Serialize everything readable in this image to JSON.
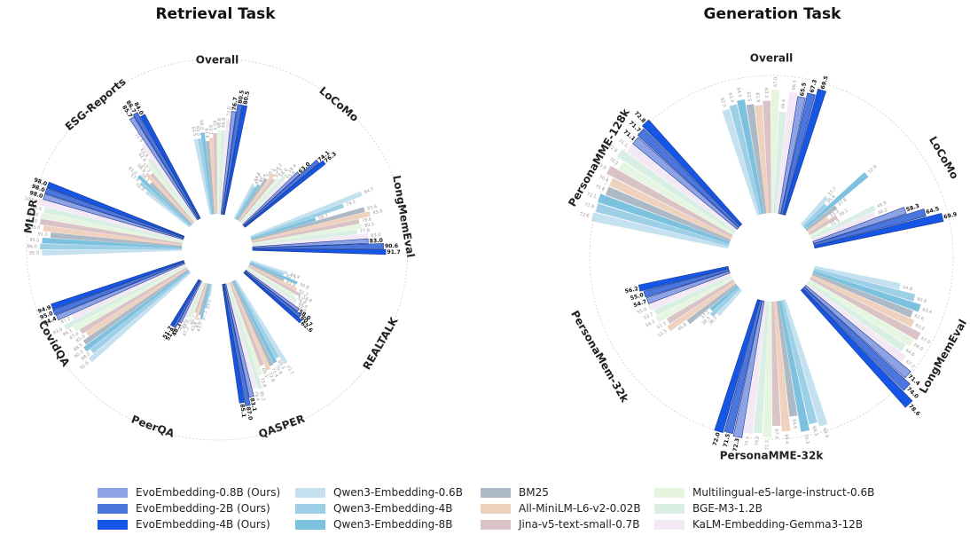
{
  "palette": {
    "EvoEmbedding-0.8B (Ours)": "#8ea2e6",
    "EvoEmbedding-2B (Ours)": "#4a76de",
    "EvoEmbedding-4B (Ours)": "#1656e6",
    "Qwen3-Embedding-0.6B": "#c5e0ef",
    "Qwen3-Embedding-4B": "#9dcfe6",
    "Qwen3-Embedding-8B": "#7cc1de",
    "BM25": "#aeb9c6",
    "All-MiniLM-L6-v2-0.02B": "#efd2bd",
    "Jina-v5-text-small-0.7B": "#d9c3c7",
    "Multilingual-e5-large-instruct-0.6B": "#e6f5e0",
    "BGE-M3-1.2B": "#d9efe4",
    "KaLM-Embedding-Gemma3-12B": "#f3e8f4"
  },
  "legend": [
    "EvoEmbedding-0.8B (Ours)",
    "EvoEmbedding-2B (Ours)",
    "EvoEmbedding-4B (Ours)",
    "Qwen3-Embedding-0.6B",
    "Qwen3-Embedding-4B",
    "Qwen3-Embedding-8B",
    "BM25",
    "All-MiniLM-L6-v2-0.02B",
    "Jina-v5-text-small-0.7B",
    "Multilingual-e5-large-instruct-0.6B",
    "BGE-M3-1.2B",
    "KaLM-Embedding-Gemma3-12B"
  ],
  "chart_data": [
    {
      "type": "radial-bar",
      "title": "Retrieval Task",
      "series_order": [
        "Qwen3-Embedding-0.6B",
        "Qwen3-Embedding-4B",
        "Qwen3-Embedding-8B",
        "BM25",
        "All-MiniLM-L6-v2-0.02B",
        "Jina-v5-text-small-0.7B",
        "Multilingual-e5-large-instruct-0.6B",
        "BGE-M3-1.2B",
        "KaLM-Embedding-Gemma3-12B",
        "EvoEmbedding-0.8B (Ours)",
        "EvoEmbedding-2B (Ours)",
        "EvoEmbedding-4B (Ours)"
      ],
      "categories": [
        {
          "name": "Overall",
          "values": [
            63.5,
            63.3,
            66.0,
            61.6,
            63.1,
            65.4,
            66.6,
            66.8,
            72.6,
            76.7,
            80.5,
            80.5
          ]
        },
        {
          "name": "LoCoMo",
          "values": [
            44.6,
            43.7,
            45.6,
            50.1,
            54.2,
            52.3,
            54.0,
            58.4,
            55.6,
            63.0,
            74.1,
            76.3
          ]
        },
        {
          "name": "LongMemEval",
          "values": [
            84.7,
            74.1,
            58.7,
            83.6,
            85.8,
            79.6,
            80.5,
            77.8,
            83.0,
            83.0,
            90.6,
            91.7
          ]
        },
        {
          "name": "REALTALK",
          "values": [
            44.4,
            42.7,
            50.6,
            43.9,
            51.7,
            54.8,
            52.8,
            54.4,
            55.0,
            58.0,
            60.7,
            62.6
          ]
        },
        {
          "name": "QASPER",
          "values": [
            73.7,
            69.3,
            70.9,
            71.4,
            72.8,
            69.5,
            73.8,
            80.2,
            79.4,
            83.1,
            87.0,
            85.1
          ]
        },
        {
          "name": "PeerQA",
          "values": [
            31.1,
            37.1,
            43.0,
            41.3,
            43.6,
            40.7,
            47.2,
            44.0,
            45.1,
            48.3,
            51.8,
            51.7
          ]
        },
        {
          "name": "CovidQA",
          "values": [
            91.6,
            88.2,
            90.3,
            88.5,
            85.0,
            87.0,
            89.1,
            93.0,
            87.2,
            94.4,
            95.0,
            94.9
          ]
        },
        {
          "name": "MLDR",
          "values": [
            95.0,
            96.0,
            95.0,
            91.0,
            95.0,
            97.0,
            97.0,
            96.0,
            100.0,
            98.0,
            98.0,
            98.0
          ]
        },
        {
          "name": "ESG-Reports",
          "values": [
            52.9,
            57.9,
            61.0,
            54.1,
            58.9,
            57.3,
            62.6,
            63.8,
            71.5,
            85.7,
            86.7,
            84.0
          ]
        }
      ],
      "bold_labels": [
        "83.0",
        "90.6",
        "91.7",
        "58.0",
        "60.7",
        "62.6",
        "83.1",
        "87.0",
        "85.1",
        "51.7",
        "51.8",
        "48.3",
        "94.4",
        "95.0",
        "94.9",
        "98.0",
        "85.7",
        "86.7",
        "84.0",
        "76.7",
        "80.5",
        "63.0",
        "74.1",
        "76.3"
      ]
    },
    {
      "type": "radial-bar",
      "title": "Generation Task",
      "series_order": [
        "Qwen3-Embedding-0.6B",
        "Qwen3-Embedding-4B",
        "Qwen3-Embedding-8B",
        "BM25",
        "All-MiniLM-L6-v2-0.02B",
        "Jina-v5-text-small-0.7B",
        "Multilingual-e5-large-instruct-0.6B",
        "BGE-M3-1.2B",
        "KaLM-Embedding-Gemma3-12B",
        "EvoEmbedding-0.8B (Ours)",
        "EvoEmbedding-2B (Ours)",
        "EvoEmbedding-4B (Ours)"
      ],
      "categories": [
        {
          "name": "Overall",
          "values": [
            62.5,
            63.4,
            64.5,
            62.5,
            61.9,
            63.3,
            67.0,
            59.6,
            66.5,
            65.5,
            67.3,
            69.5
          ]
        },
        {
          "name": "LoCoMo",
          "values": [
            37.7,
            35.6,
            52.9,
            37.8,
            33.3,
            36.1,
            31.9,
            48.9,
            48.2,
            58.3,
            64.5,
            69.9
          ]
        },
        {
          "name": "LongMemEval",
          "values": [
            54.8,
            60.6,
            63.4,
            61.6,
            63.2,
            67.0,
            66.0,
            64.6,
            67.0,
            71.4,
            74.0,
            78.6
          ]
        },
        {
          "name": "PersonaMME-32k",
          "values": [
            69.9,
            68.3,
            70.3,
            64.6,
            69.4,
            67.4,
            71.3,
            70.0,
            70.5,
            72.3,
            71.5,
            72.0
          ]
        },
        {
          "name": "PersonaMem-32k",
          "values": [
            36.5,
            38.3,
            37.1,
            45.8,
            52.5,
            51.3,
            54.3,
            53.7,
            55.0,
            54.7,
            55.0,
            56.2
          ]
        },
        {
          "name": "PersonaMME-128k",
          "values": [
            72.6,
            71.8,
            72.1,
            70.4,
            70.4,
            73.0,
            70.1,
            72.8,
            71.1,
            71.1,
            71.7,
            72.8
          ]
        }
      ],
      "bold_labels": [
        "65.5",
        "67.3",
        "69.5",
        "58.3",
        "64.5",
        "69.9",
        "71.4",
        "74.0",
        "78.6",
        "72.3",
        "71.5",
        "72.0",
        "54.7",
        "55.0",
        "56.2",
        "71.1",
        "71.7",
        "72.8"
      ]
    }
  ]
}
